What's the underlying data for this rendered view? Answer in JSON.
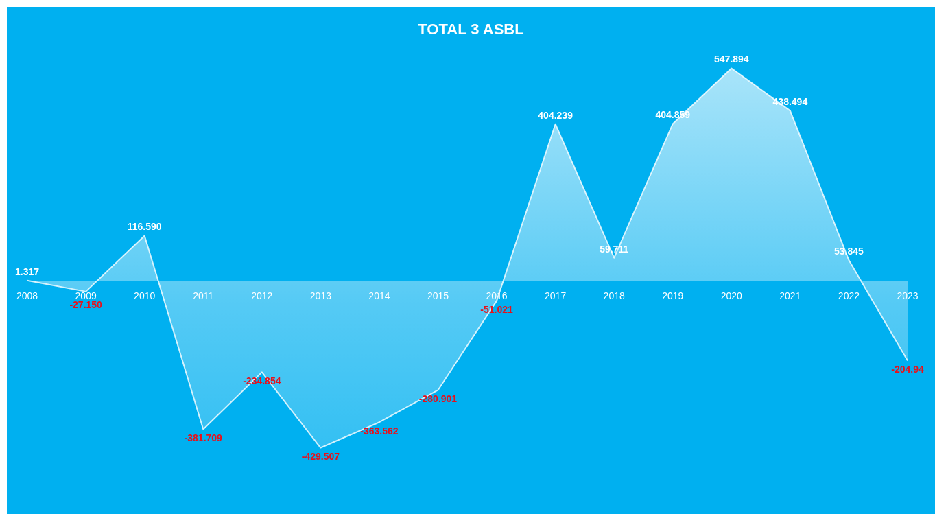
{
  "chart_data": {
    "type": "area",
    "title": "TOTAL 3 ASBL",
    "categories": [
      "2008",
      "2009",
      "2010",
      "2011",
      "2012",
      "2013",
      "2014",
      "2015",
      "2016",
      "2017",
      "2018",
      "2019",
      "2020",
      "2021",
      "2022",
      "2023"
    ],
    "series": [
      {
        "color": "#ffffff",
        "values": [
          1.317,
          -27.15,
          116.59,
          -381.709,
          -234.854,
          -429.507,
          -363.562,
          -280.901,
          -51.021,
          404.239,
          59.711,
          404.859,
          547.894,
          438.494,
          53.845,
          -204.94
        ],
        "value_labels": [
          "1.317",
          "-27.150",
          "116.590",
          "-381.709",
          "-234.854",
          "-429.507",
          "-363.562",
          "-280.901",
          "-51.021",
          "404.239",
          "59.711",
          "404.859",
          "547.894",
          "438.494",
          "53.845",
          "-204.94"
        ]
      }
    ],
    "tick_labels": "x",
    "grid": false,
    "legend": false,
    "marker": "none"
  }
}
